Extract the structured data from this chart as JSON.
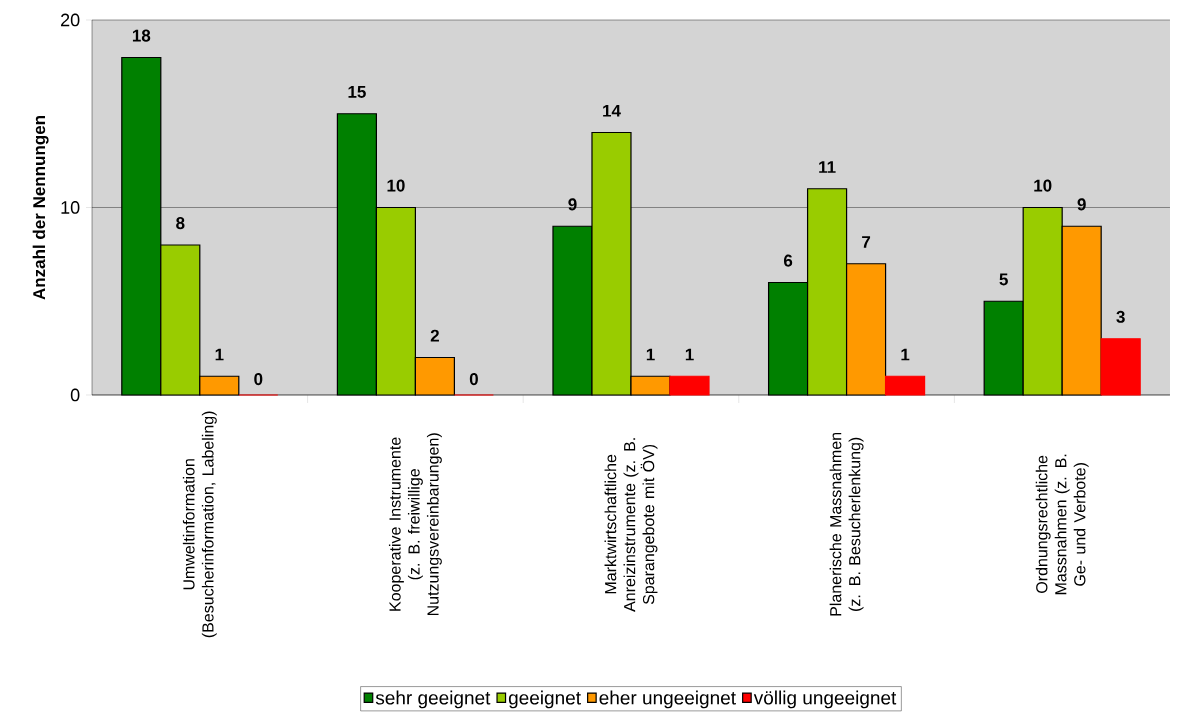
{
  "chart_data": {
    "type": "bar",
    "ylabel": "Anzahl der Nennungen",
    "categories": [
      "Umweltinformation (Besucherinformation, Labeling)",
      "Kooperative Instrumente (z. B. freiwillige Nutzungsvereinbarungen)",
      "Marktwirtschaftliche Anreizinstrumente (z. B. Sparangebote mit ÖV)",
      "Planerische Massnahmen (z. B. Besucherlenkung)",
      "Ordnungsrechtliche Massnahmen (z. B. Ge- und Verbote)"
    ],
    "series": [
      {
        "name": "sehr geeignet",
        "color": "#008000",
        "values": [
          18,
          15,
          9,
          6,
          5
        ]
      },
      {
        "name": "geeignet",
        "color": "#99cc00",
        "values": [
          8,
          10,
          14,
          11,
          10
        ]
      },
      {
        "name": "eher ungeeignet",
        "color": "#ff9900",
        "values": [
          1,
          2,
          1,
          7,
          9
        ]
      },
      {
        "name": "völlig ungeeignet",
        "color": "#ff0000",
        "values": [
          0,
          0,
          1,
          1,
          3
        ]
      }
    ],
    "ylim": [
      0,
      20
    ],
    "yticks": [
      0,
      10,
      20
    ],
    "grid": "y",
    "legend": "bottom",
    "data_labels": true
  }
}
